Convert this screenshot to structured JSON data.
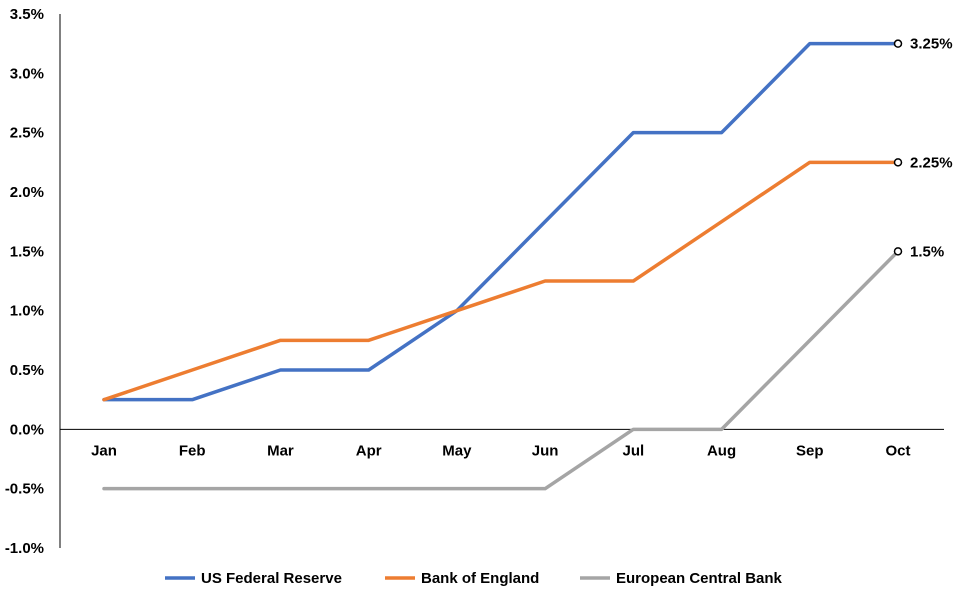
{
  "chart_data": {
    "type": "line",
    "categories": [
      "Jan",
      "Feb",
      "Mar",
      "Apr",
      "May",
      "Jun",
      "Jul",
      "Aug",
      "Sep",
      "Oct"
    ],
    "ylim": [
      -1.0,
      3.5
    ],
    "yticks": [
      -1.0,
      -0.5,
      0.0,
      0.5,
      1.0,
      1.5,
      2.0,
      2.5,
      3.0,
      3.5
    ],
    "ytick_labels": [
      "-1.0%",
      "-0.5%",
      "0.0%",
      "0.5%",
      "1.0%",
      "1.5%",
      "2.0%",
      "2.5%",
      "3.0%",
      "3.5%"
    ],
    "grid": false,
    "legend_position": "bottom",
    "series": [
      {
        "name": "US Federal Reserve",
        "color": "#4472C4",
        "values": [
          0.25,
          0.25,
          0.5,
          0.5,
          1.0,
          1.75,
          2.5,
          2.5,
          3.25,
          3.25
        ],
        "end_label": "3.25%"
      },
      {
        "name": "Bank of England",
        "color": "#ED7D31",
        "values": [
          0.25,
          0.5,
          0.75,
          0.75,
          1.0,
          1.25,
          1.25,
          1.75,
          2.25,
          2.25
        ],
        "end_label": "2.25%"
      },
      {
        "name": "European Central Bank",
        "color": "#A5A5A5",
        "values": [
          -0.5,
          -0.5,
          -0.5,
          -0.5,
          -0.5,
          -0.5,
          0.0,
          0.0,
          0.75,
          1.5
        ],
        "end_label": "1.5%"
      }
    ]
  }
}
